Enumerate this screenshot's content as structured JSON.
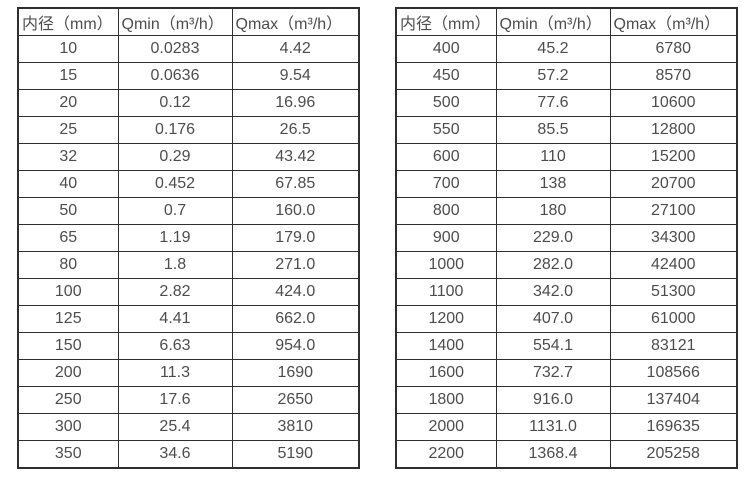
{
  "headers": {
    "diameter": "内径（mm）",
    "qmin": "Qmin（m³/h）",
    "qmax": "Qmax（m³/h）"
  },
  "tables": {
    "left": [
      [
        "10",
        "0.0283",
        "4.42"
      ],
      [
        "15",
        "0.0636",
        "9.54"
      ],
      [
        "20",
        "0.12",
        "16.96"
      ],
      [
        "25",
        "0.176",
        "26.5"
      ],
      [
        "32",
        "0.29",
        "43.42"
      ],
      [
        "40",
        "0.452",
        "67.85"
      ],
      [
        "50",
        "0.7",
        "160.0"
      ],
      [
        "65",
        "1.19",
        "179.0"
      ],
      [
        "80",
        "1.8",
        "271.0"
      ],
      [
        "100",
        "2.82",
        "424.0"
      ],
      [
        "125",
        "4.41",
        "662.0"
      ],
      [
        "150",
        "6.63",
        "954.0"
      ],
      [
        "200",
        "11.3",
        "1690"
      ],
      [
        "250",
        "17.6",
        "2650"
      ],
      [
        "300",
        "25.4",
        "3810"
      ],
      [
        "350",
        "34.6",
        "5190"
      ]
    ],
    "right": [
      [
        "400",
        "45.2",
        "6780"
      ],
      [
        "450",
        "57.2",
        "8570"
      ],
      [
        "500",
        "77.6",
        "10600"
      ],
      [
        "550",
        "85.5",
        "12800"
      ],
      [
        "600",
        "110",
        "15200"
      ],
      [
        "700",
        "138",
        "20700"
      ],
      [
        "800",
        "180",
        "27100"
      ],
      [
        "900",
        "229.0",
        "34300"
      ],
      [
        "1000",
        "282.0",
        "42400"
      ],
      [
        "1100",
        "342.0",
        "51300"
      ],
      [
        "1200",
        "407.0",
        "61000"
      ],
      [
        "1400",
        "554.1",
        "83121"
      ],
      [
        "1600",
        "732.7",
        "108566"
      ],
      [
        "1800",
        "916.0",
        "137404"
      ],
      [
        "2000",
        "1131.0",
        "169635"
      ],
      [
        "2200",
        "1368.4",
        "205258"
      ]
    ]
  },
  "colors": {
    "border": "#2f2f2f",
    "text": "#4d4d4d",
    "background": "#ffffff"
  }
}
